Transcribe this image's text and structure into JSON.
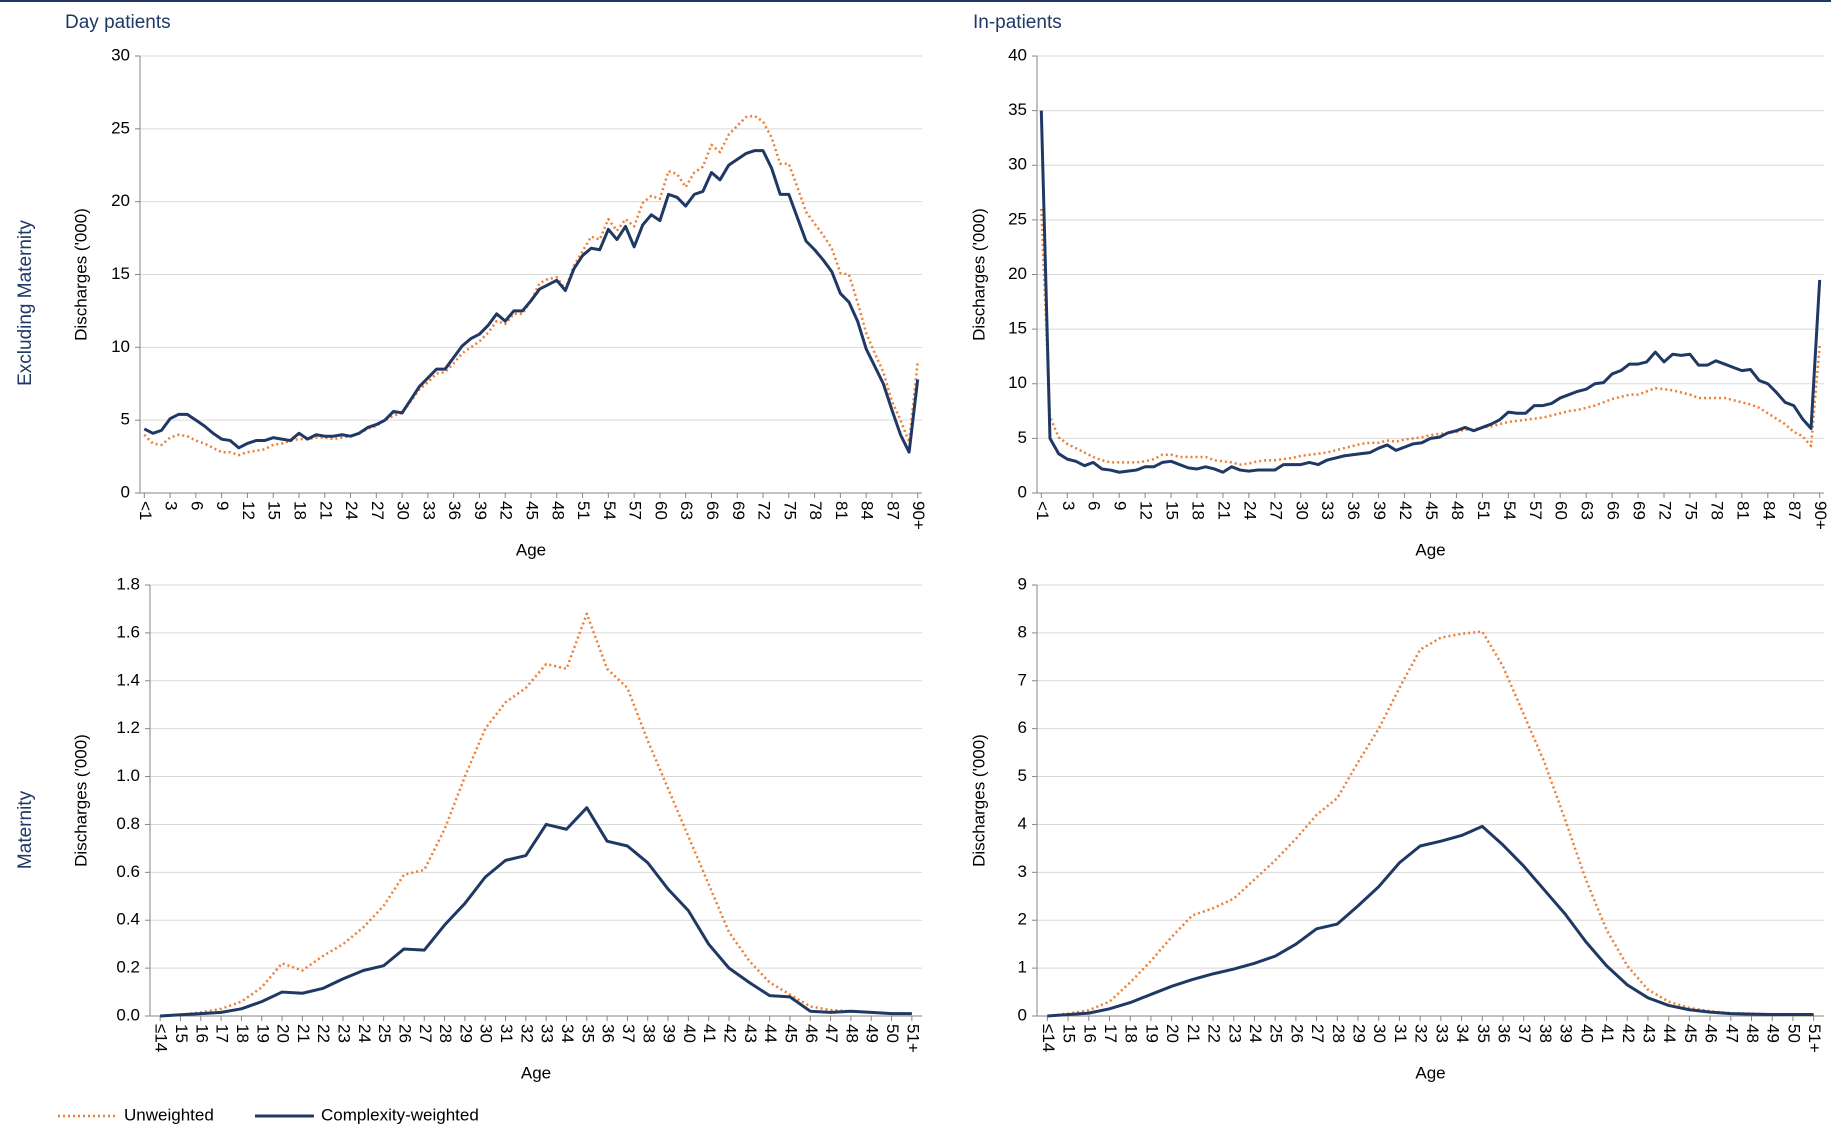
{
  "row_labels": [
    "Excluding Maternity",
    "Maternity"
  ],
  "chart_data": [
    {
      "type": "line",
      "title": "Day patients",
      "x_label": "Age",
      "y_label": "Discharges ('000)",
      "categories": [
        "<1",
        null,
        null,
        "3",
        null,
        null,
        "6",
        null,
        null,
        "9",
        null,
        null,
        "12",
        null,
        null,
        "15",
        null,
        null,
        "18",
        null,
        null,
        "21",
        null,
        null,
        "24",
        null,
        null,
        "27",
        null,
        null,
        "30",
        null,
        null,
        "33",
        null,
        null,
        "36",
        null,
        null,
        "39",
        null,
        null,
        "42",
        null,
        null,
        "45",
        null,
        null,
        "48",
        null,
        null,
        "51",
        null,
        null,
        "54",
        null,
        null,
        "57",
        null,
        null,
        "60",
        null,
        null,
        "63",
        null,
        null,
        "66",
        null,
        null,
        "69",
        null,
        null,
        "72",
        null,
        null,
        "75",
        null,
        null,
        "78",
        null,
        null,
        "81",
        null,
        null,
        "84",
        null,
        null,
        "87",
        null,
        null,
        "90+"
      ],
      "ylim": [
        0,
        30
      ],
      "yticks": [
        0,
        5,
        10,
        15,
        20,
        25,
        30
      ],
      "grid": true,
      "series": [
        {
          "name": "Unweighted",
          "color": "#ed7d31",
          "line_style": "dotted",
          "values": [
            4.0,
            3.4,
            3.3,
            3.8,
            4.0,
            3.9,
            3.6,
            3.4,
            3.1,
            2.8,
            2.8,
            2.6,
            2.8,
            2.9,
            3.0,
            3.3,
            3.4,
            3.6,
            3.7,
            3.7,
            3.8,
            3.8,
            3.7,
            3.8,
            3.9,
            4.1,
            4.4,
            4.6,
            5.0,
            5.3,
            5.5,
            6.3,
            7.1,
            7.6,
            8.2,
            8.3,
            8.9,
            9.6,
            10.0,
            10.4,
            11.0,
            11.8,
            11.6,
            12.3,
            12.3,
            13.2,
            14.4,
            14.7,
            14.8,
            14.0,
            15.6,
            16.6,
            17.6,
            17.4,
            18.8,
            18.0,
            18.8,
            18.3,
            19.9,
            20.4,
            20.2,
            22.1,
            21.9,
            21.0,
            22.0,
            22.4,
            23.9,
            23.4,
            24.6,
            25.2,
            25.8,
            25.9,
            25.5,
            24.4,
            22.6,
            22.6,
            21.0,
            19.3,
            18.5,
            17.7,
            16.8,
            15.1,
            15.0,
            13.1,
            11.0,
            9.6,
            8.3,
            6.3,
            5.0,
            3.5,
            9.0
          ]
        },
        {
          "name": "Complexity-weighted",
          "color": "#1f3864",
          "line_style": "solid",
          "values": [
            4.4,
            4.1,
            4.3,
            5.1,
            5.4,
            5.4,
            5.0,
            4.6,
            4.1,
            3.7,
            3.6,
            3.1,
            3.4,
            3.6,
            3.6,
            3.8,
            3.7,
            3.6,
            4.1,
            3.7,
            4.0,
            3.9,
            3.9,
            4.0,
            3.9,
            4.1,
            4.5,
            4.7,
            5.0,
            5.6,
            5.5,
            6.4,
            7.3,
            7.9,
            8.5,
            8.5,
            9.3,
            10.1,
            10.6,
            10.9,
            11.5,
            12.3,
            11.8,
            12.5,
            12.5,
            13.2,
            14.0,
            14.3,
            14.6,
            13.9,
            15.4,
            16.3,
            16.8,
            16.7,
            18.1,
            17.4,
            18.3,
            16.9,
            18.4,
            19.1,
            18.7,
            20.5,
            20.3,
            19.7,
            20.5,
            20.7,
            22.0,
            21.5,
            22.5,
            22.9,
            23.3,
            23.5,
            23.5,
            22.3,
            20.5,
            20.5,
            18.9,
            17.3,
            16.7,
            16.0,
            15.2,
            13.7,
            13.1,
            11.8,
            9.9,
            8.7,
            7.5,
            5.7,
            4.0,
            2.8,
            7.8
          ]
        }
      ]
    },
    {
      "type": "line",
      "title": "In-patients",
      "x_label": "Age",
      "y_label": "Discharges ('000)",
      "categories": [
        "<1",
        null,
        null,
        "3",
        null,
        null,
        "6",
        null,
        null,
        "9",
        null,
        null,
        "12",
        null,
        null,
        "15",
        null,
        null,
        "18",
        null,
        null,
        "21",
        null,
        null,
        "24",
        null,
        null,
        "27",
        null,
        null,
        "30",
        null,
        null,
        "33",
        null,
        null,
        "36",
        null,
        null,
        "39",
        null,
        null,
        "42",
        null,
        null,
        "45",
        null,
        null,
        "48",
        null,
        null,
        "51",
        null,
        null,
        "54",
        null,
        null,
        "57",
        null,
        null,
        "60",
        null,
        null,
        "63",
        null,
        null,
        "66",
        null,
        null,
        "69",
        null,
        null,
        "72",
        null,
        null,
        "75",
        null,
        null,
        "78",
        null,
        null,
        "81",
        null,
        null,
        "84",
        null,
        null,
        "87",
        null,
        null,
        "90+"
      ],
      "ylim": [
        0,
        40
      ],
      "yticks": [
        0,
        5,
        10,
        15,
        20,
        25,
        30,
        35,
        40
      ],
      "grid": true,
      "series": [
        {
          "name": "Unweighted",
          "color": "#ed7d31",
          "line_style": "dotted",
          "values": [
            26.0,
            7.0,
            5.1,
            4.5,
            4.1,
            3.7,
            3.3,
            3.0,
            2.8,
            2.8,
            2.8,
            2.8,
            2.9,
            3.1,
            3.5,
            3.5,
            3.3,
            3.3,
            3.3,
            3.3,
            3.0,
            2.9,
            2.8,
            2.6,
            2.7,
            2.9,
            3.0,
            3.0,
            3.1,
            3.2,
            3.4,
            3.5,
            3.6,
            3.7,
            3.9,
            4.1,
            4.3,
            4.5,
            4.6,
            4.6,
            4.8,
            4.7,
            4.9,
            5.0,
            5.1,
            5.3,
            5.4,
            5.5,
            5.6,
            5.8,
            5.8,
            6.0,
            6.1,
            6.3,
            6.5,
            6.6,
            6.7,
            6.8,
            6.9,
            7.1,
            7.3,
            7.5,
            7.6,
            7.8,
            8.0,
            8.3,
            8.6,
            8.8,
            9.0,
            9.0,
            9.3,
            9.6,
            9.5,
            9.4,
            9.2,
            9.0,
            8.7,
            8.7,
            8.7,
            8.7,
            8.5,
            8.3,
            8.1,
            7.8,
            7.3,
            6.8,
            6.3,
            5.6,
            5.2,
            4.3,
            13.5
          ]
        },
        {
          "name": "Complexity-weighted",
          "color": "#1f3864",
          "line_style": "solid",
          "values": [
            35.0,
            5.0,
            3.6,
            3.1,
            2.9,
            2.5,
            2.8,
            2.2,
            2.1,
            1.9,
            2.0,
            2.1,
            2.4,
            2.4,
            2.8,
            2.9,
            2.6,
            2.3,
            2.2,
            2.4,
            2.2,
            1.9,
            2.4,
            2.1,
            2.0,
            2.1,
            2.1,
            2.1,
            2.6,
            2.6,
            2.6,
            2.8,
            2.6,
            3.0,
            3.2,
            3.4,
            3.5,
            3.6,
            3.7,
            4.1,
            4.4,
            3.9,
            4.2,
            4.5,
            4.6,
            5.0,
            5.1,
            5.5,
            5.7,
            6.0,
            5.7,
            6.0,
            6.3,
            6.7,
            7.4,
            7.3,
            7.3,
            8.0,
            8.0,
            8.2,
            8.7,
            9.0,
            9.3,
            9.5,
            10.0,
            10.1,
            10.9,
            11.2,
            11.8,
            11.8,
            12.0,
            12.9,
            12.0,
            12.7,
            12.6,
            12.7,
            11.7,
            11.7,
            12.1,
            11.8,
            11.5,
            11.2,
            11.3,
            10.3,
            10.0,
            9.2,
            8.3,
            8.0,
            6.8,
            5.9,
            19.5
          ]
        }
      ]
    },
    {
      "type": "line",
      "x_label": "Age",
      "y_label": "Discharges ('000)",
      "categories": [
        "≤14",
        "15",
        "16",
        "17",
        "18",
        "19",
        "20",
        "21",
        "22",
        "23",
        "24",
        "25",
        "26",
        "27",
        "28",
        "29",
        "30",
        "31",
        "32",
        "33",
        "34",
        "35",
        "36",
        "37",
        "38",
        "39",
        "40",
        "41",
        "42",
        "43",
        "44",
        "45",
        "46",
        "47",
        "48",
        "49",
        "50",
        "51+"
      ],
      "ylim": [
        0,
        1.8
      ],
      "yticks": [
        {
          "value": 0,
          "label": "0.0"
        },
        0.2,
        0.4,
        0.6,
        0.8,
        {
          "value": 1,
          "label": "1.0"
        },
        1.2,
        1.4,
        1.6,
        1.8
      ],
      "grid": true,
      "series": [
        {
          "name": "Unweighted",
          "color": "#ed7d31",
          "line_style": "dotted",
          "values": [
            0.0,
            0.005,
            0.015,
            0.03,
            0.06,
            0.12,
            0.22,
            0.19,
            0.25,
            0.3,
            0.37,
            0.46,
            0.59,
            0.61,
            0.78,
            1.0,
            1.2,
            1.31,
            1.37,
            1.47,
            1.45,
            1.68,
            1.45,
            1.37,
            1.15,
            0.95,
            0.75,
            0.55,
            0.35,
            0.23,
            0.14,
            0.09,
            0.04,
            0.025,
            0.02,
            0.015,
            0.01,
            0.01
          ]
        },
        {
          "name": "Complexity-weighted",
          "color": "#1f3864",
          "line_style": "solid",
          "values": [
            0.0,
            0.005,
            0.01,
            0.015,
            0.03,
            0.06,
            0.1,
            0.095,
            0.115,
            0.155,
            0.19,
            0.21,
            0.28,
            0.275,
            0.38,
            0.47,
            0.58,
            0.65,
            0.67,
            0.8,
            0.78,
            0.87,
            0.73,
            0.71,
            0.64,
            0.53,
            0.44,
            0.3,
            0.2,
            0.14,
            0.085,
            0.08,
            0.02,
            0.015,
            0.02,
            0.015,
            0.01,
            0.01
          ]
        }
      ]
    },
    {
      "type": "line",
      "x_label": "Age",
      "y_label": "Discharges ('000)",
      "categories": [
        "≤14",
        "15",
        "16",
        "17",
        "18",
        "19",
        "20",
        "21",
        "22",
        "23",
        "24",
        "25",
        "26",
        "27",
        "28",
        "29",
        "30",
        "31",
        "32",
        "33",
        "34",
        "35",
        "36",
        "37",
        "38",
        "39",
        "40",
        "41",
        "42",
        "43",
        "44",
        "45",
        "46",
        "47",
        "48",
        "49",
        "50",
        "51+"
      ],
      "ylim": [
        0,
        9
      ],
      "yticks": [
        0,
        1,
        2,
        3,
        4,
        5,
        6,
        7,
        8,
        9
      ],
      "grid": true,
      "series": [
        {
          "name": "Unweighted",
          "color": "#ed7d31",
          "line_style": "dotted",
          "values": [
            0.0,
            0.05,
            0.12,
            0.3,
            0.7,
            1.15,
            1.65,
            2.1,
            2.25,
            2.45,
            2.85,
            3.25,
            3.7,
            4.2,
            4.55,
            5.3,
            6.0,
            6.85,
            7.65,
            7.9,
            7.98,
            8.03,
            7.3,
            6.3,
            5.3,
            4.1,
            2.85,
            1.8,
            1.05,
            0.55,
            0.3,
            0.17,
            0.1,
            0.06,
            0.05,
            0.03,
            0.02,
            0.02
          ]
        },
        {
          "name": "Complexity-weighted",
          "color": "#1f3864",
          "line_style": "solid",
          "values": [
            0.0,
            0.03,
            0.06,
            0.15,
            0.28,
            0.45,
            0.62,
            0.76,
            0.88,
            0.98,
            1.1,
            1.25,
            1.5,
            1.82,
            1.92,
            2.3,
            2.7,
            3.2,
            3.55,
            3.65,
            3.77,
            3.96,
            3.57,
            3.13,
            2.63,
            2.13,
            1.55,
            1.05,
            0.65,
            0.38,
            0.22,
            0.13,
            0.08,
            0.05,
            0.04,
            0.03,
            0.03,
            0.03
          ]
        }
      ]
    }
  ]
}
